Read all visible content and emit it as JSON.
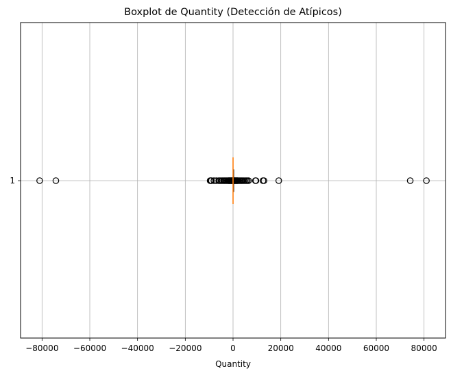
{
  "chart_data": {
    "type": "boxplot",
    "orientation": "horizontal",
    "title": "Boxplot de Quantity (Detección de Atípicos)",
    "xlabel": "Quantity",
    "ylabel": "",
    "xlim": [
      -89000,
      89000
    ],
    "xticks": [
      -80000,
      -60000,
      -40000,
      -20000,
      0,
      20000,
      40000,
      60000,
      80000
    ],
    "xtick_labels": [
      "−80000",
      "−60000",
      "−40000",
      "−20000",
      "0",
      "20000",
      "40000",
      "60000",
      "80000"
    ],
    "ytick_labels": [
      "1"
    ],
    "grid": true,
    "colors": {
      "median": "#ff7f0e",
      "box": "#000000",
      "grid": "#b0b0b0",
      "outlier_edge": "#000000"
    },
    "series": [
      {
        "position": 1,
        "whisker_low": -10,
        "q1": 2,
        "median": 4,
        "q3": 12,
        "whisker_high": 30,
        "outliers": [
          -80995,
          -74215,
          -9600,
          -9360,
          -9058,
          -8000,
          -7000,
          -6000,
          -5500,
          -5000,
          -4500,
          -4000,
          -3600,
          -3200,
          -2800,
          -2400,
          -2000,
          -1800,
          -1600,
          -1400,
          -1200,
          -1000,
          -800,
          -600,
          -400,
          -300,
          -200,
          -100,
          -60,
          60,
          100,
          200,
          300,
          400,
          600,
          800,
          1000,
          1200,
          1400,
          1600,
          1800,
          2000,
          2400,
          2800,
          3200,
          3600,
          4000,
          4500,
          5000,
          5500,
          6000,
          6500,
          9360,
          9600,
          12540,
          12960,
          19152,
          74215,
          80995
        ]
      }
    ]
  }
}
